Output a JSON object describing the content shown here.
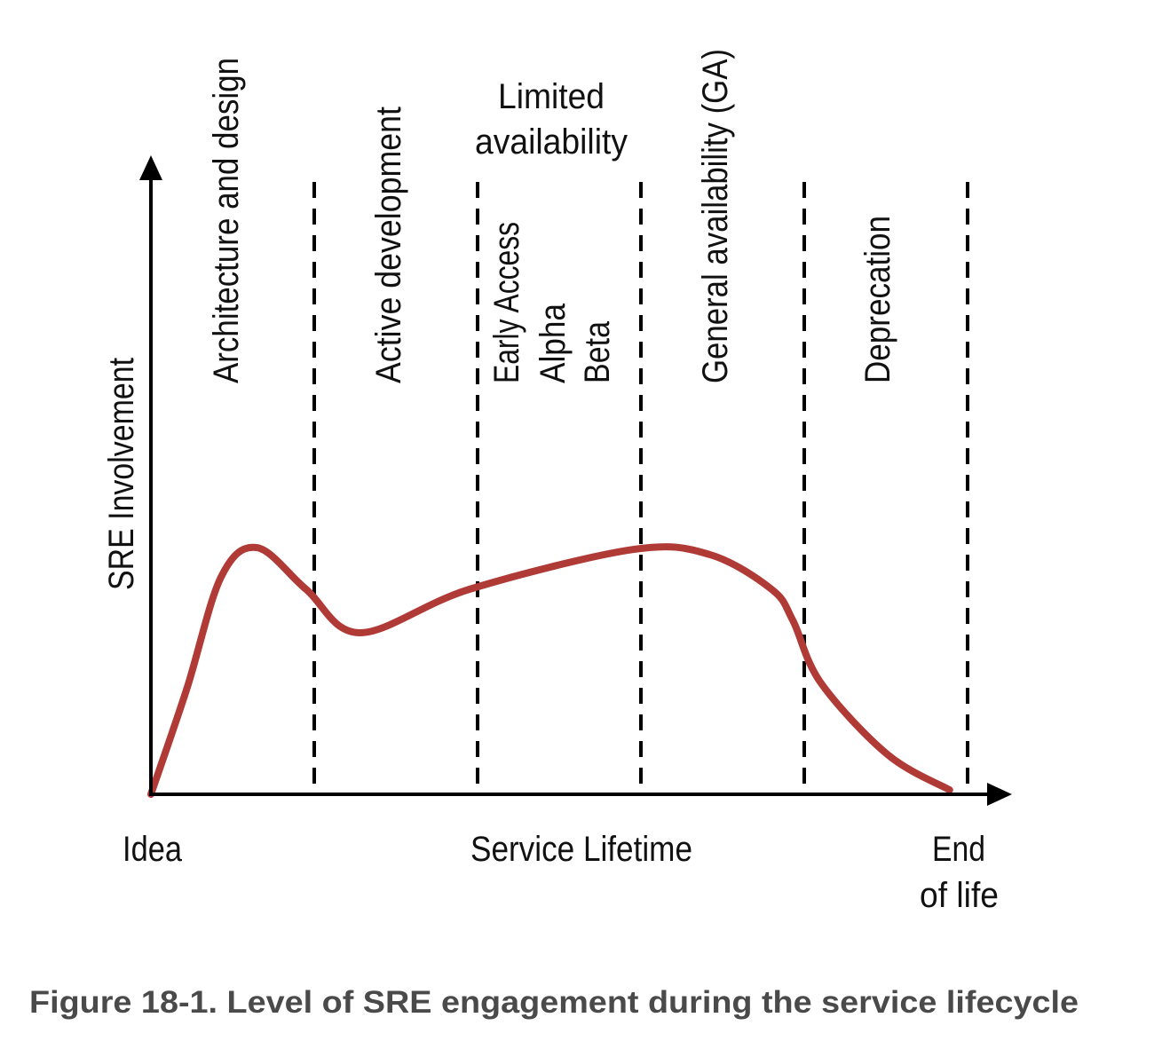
{
  "chart_data": {
    "type": "line",
    "title": "",
    "xlabel": "Service Lifetime",
    "ylabel": "SRE Involvement",
    "x_start_label": "Idea",
    "x_end_label": [
      "End",
      "of life"
    ],
    "xlim": [
      0,
      5
    ],
    "ylim": [
      0,
      100
    ],
    "grid": false,
    "phases": [
      {
        "lines": [
          "Architecture and design"
        ],
        "orientation": "vertical"
      },
      {
        "lines": [
          "Active development"
        ],
        "orientation": "vertical"
      },
      {
        "header": [
          "Limited",
          "availability"
        ],
        "lines": [
          "Early Access",
          "Alpha",
          "Beta"
        ],
        "orientation": "vertical"
      },
      {
        "lines": [
          "General availability (GA)"
        ],
        "orientation": "vertical"
      },
      {
        "lines": [
          "Deprecation"
        ],
        "orientation": "vertical"
      }
    ],
    "phase_boundaries": [
      1,
      2,
      3,
      4,
      5
    ],
    "series": [
      {
        "name": "SRE engagement",
        "color": "#b03a36",
        "points": [
          [
            0,
            0
          ],
          [
            0.22,
            17
          ],
          [
            0.43,
            35
          ],
          [
            0.65,
            39.7
          ],
          [
            0.95,
            33
          ],
          [
            1.28,
            26
          ],
          [
            1.95,
            33
          ],
          [
            2.95,
            39.4
          ],
          [
            3.42,
            38.6
          ],
          [
            3.8,
            33
          ],
          [
            3.93,
            28
          ],
          [
            4.1,
            18
          ],
          [
            4.51,
            6.4
          ],
          [
            4.89,
            0.7
          ]
        ]
      }
    ]
  },
  "caption": "Figure 18-1. Level of SRE engagement during the service lifecycle"
}
